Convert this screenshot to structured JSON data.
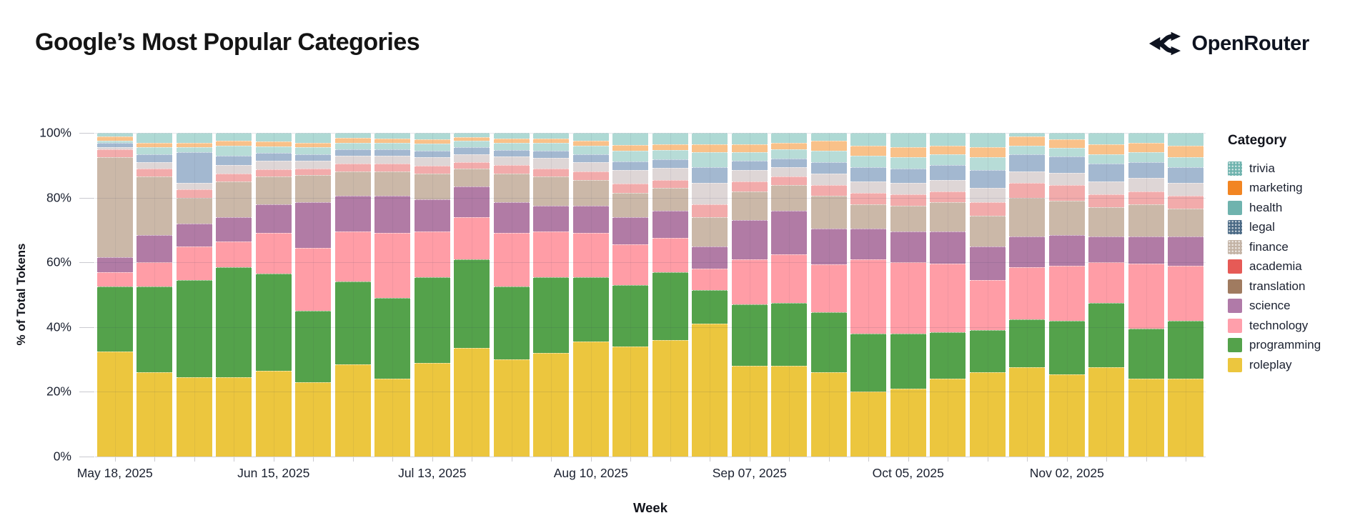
{
  "header": {
    "title": "Google’s Most Popular Categories",
    "brand": {
      "name": "OpenRouter",
      "icon": "route-split-icon"
    }
  },
  "chart_data": {
    "type": "bar",
    "subtype": "stacked-100-percent",
    "title": "Google’s Most Popular Categories",
    "xlabel": "Week",
    "ylabel": "% of Total Tokens",
    "ylim": [
      0,
      100
    ],
    "grid": true,
    "ytick_labels": [
      "0%",
      "20%",
      "40%",
      "60%",
      "80%",
      "100%"
    ],
    "x": [
      "May 18, 2025",
      "May 25, 2025",
      "Jun 01, 2025",
      "Jun 08, 2025",
      "Jun 15, 2025",
      "Jun 22, 2025",
      "Jun 29, 2025",
      "Jul 06, 2025",
      "Jul 13, 2025",
      "Jul 20, 2025",
      "Jul 27, 2025",
      "Aug 03, 2025",
      "Aug 10, 2025",
      "Aug 17, 2025",
      "Aug 24, 2025",
      "Aug 31, 2025",
      "Sep 07, 2025",
      "Sep 14, 2025",
      "Sep 21, 2025",
      "Sep 28, 2025",
      "Oct 05, 2025",
      "Oct 12, 2025",
      "Oct 19, 2025",
      "Oct 26, 2025",
      "Nov 02, 2025",
      "Nov 09, 2025",
      "Nov 16, 2025",
      "Nov 23, 2025"
    ],
    "x_labeled_indices": [
      0,
      4,
      8,
      12,
      16,
      20,
      24
    ],
    "x_labels_shown": [
      "May 18, 2025",
      "Jun 15, 2025",
      "Jul 13, 2025",
      "Aug 10, 2025",
      "Sep 07, 2025",
      "Oct 05, 2025",
      "Nov 02, 2025"
    ],
    "stack_order_bottom_to_top": [
      "roleplay",
      "programming",
      "technology",
      "science",
      "translation",
      "academia",
      "finance",
      "legal",
      "health",
      "marketing",
      "trivia"
    ],
    "series": [
      {
        "name": "roleplay",
        "bar_color": "#ecc63e",
        "legend_color": "#ecc63e",
        "textured": false,
        "values": [
          32.5,
          26,
          24.5,
          24.5,
          26.5,
          23,
          28.5,
          24,
          29,
          33.5,
          30,
          32,
          35.5,
          34,
          36,
          41,
          28,
          28,
          26,
          20,
          21,
          24,
          26,
          27.5,
          25.5,
          27.5,
          24,
          24
        ]
      },
      {
        "name": "programming",
        "bar_color": "#54a24b",
        "legend_color": "#54a24b",
        "textured": false,
        "values": [
          20,
          26.5,
          30,
          34,
          30,
          22,
          25.5,
          25,
          26.5,
          27.5,
          22.5,
          23.5,
          20,
          19,
          21,
          10.5,
          19,
          19.5,
          18.5,
          18,
          17,
          14.5,
          13,
          15,
          16.5,
          20,
          15.5,
          18
        ]
      },
      {
        "name": "technology",
        "bar_color": "#ff9da6",
        "legend_color": "#ff9fab",
        "textured": false,
        "values": [
          4.5,
          7.5,
          10.5,
          8,
          12.5,
          19.5,
          15.5,
          20,
          14,
          13,
          16.5,
          14,
          13.5,
          12.5,
          10.5,
          6.5,
          14,
          15,
          15,
          23,
          22,
          21,
          15.5,
          16,
          17,
          12.5,
          20,
          17
        ]
      },
      {
        "name": "science",
        "bar_color": "#b17ba5",
        "legend_color": "#b07aa8",
        "textured": false,
        "values": [
          4.5,
          8.5,
          7,
          7.5,
          9,
          14,
          11,
          11.5,
          10,
          9.5,
          9.5,
          8,
          8.5,
          8.5,
          8.5,
          7,
          12,
          13.5,
          11,
          9.5,
          9.5,
          10,
          10.5,
          9.5,
          9.5,
          8,
          8.5,
          9
        ]
      },
      {
        "name": "translation",
        "bar_color": "#cbb8a8",
        "legend_color": "#a07b60",
        "textured": false,
        "values": [
          31,
          18,
          8,
          11,
          8.5,
          8.5,
          7.5,
          7.5,
          8,
          5.5,
          9,
          9,
          8,
          7.5,
          7,
          9,
          9,
          8,
          10,
          7.5,
          8,
          9,
          9.5,
          12,
          10.5,
          9,
          10,
          8.5
        ]
      },
      {
        "name": "academia",
        "bar_color": "#f2abab",
        "legend_color": "#e65a56",
        "textured": false,
        "values": [
          2.5,
          2.5,
          2.5,
          2.5,
          2.2,
          2,
          2.5,
          2.5,
          2.3,
          2,
          2.5,
          2.5,
          2.5,
          2.8,
          2.5,
          4,
          3,
          2.5,
          3.5,
          3.5,
          3.5,
          3.5,
          4,
          4.5,
          5,
          4,
          4,
          4
        ]
      },
      {
        "name": "finance",
        "bar_color": "#ded6d6",
        "legend_color": "#c3b3a5",
        "textured": true,
        "values": [
          0.5,
          2,
          2,
          2.5,
          2.8,
          2.5,
          2.5,
          2.5,
          2.7,
          2.5,
          2.8,
          3.2,
          3,
          4.2,
          3.8,
          6.5,
          3.5,
          3,
          3.5,
          3.5,
          3.5,
          3.5,
          4.5,
          3.5,
          3.7,
          4,
          4,
          4
        ]
      },
      {
        "name": "legal",
        "bar_color": "#a3b8d0",
        "legend_color": "#4a6985",
        "textured": true,
        "values": [
          1.5,
          2.5,
          9.5,
          3,
          2.3,
          2,
          2,
          2,
          2,
          2,
          2,
          2.3,
          2.3,
          2.7,
          2.5,
          5,
          3,
          2.5,
          3.5,
          4.5,
          4.5,
          4.5,
          5.5,
          5.5,
          5,
          5.5,
          5,
          5
        ]
      },
      {
        "name": "health",
        "bar_color": "#b7dcd7",
        "legend_color": "#6fb3ae",
        "textured": false,
        "values": [
          0.5,
          2,
          1.5,
          3,
          2,
          2.2,
          2,
          2,
          2.2,
          2,
          2.2,
          2.5,
          2.7,
          3.3,
          3,
          4.5,
          2.5,
          3,
          3.5,
          3.5,
          3.5,
          3.5,
          4,
          2.5,
          2.6,
          3,
          3,
          3
        ]
      },
      {
        "name": "marketing",
        "bar_color": "#f9c189",
        "legend_color": "#f28522",
        "textured": false,
        "values": [
          1.5,
          1.5,
          1.5,
          1.5,
          1.5,
          1.3,
          1.5,
          1.3,
          1.3,
          1.2,
          1.3,
          1.3,
          1.5,
          1.8,
          1.7,
          2.5,
          2.5,
          2,
          3,
          3,
          3,
          2.5,
          3,
          3,
          2.7,
          3,
          3,
          3.5
        ]
      },
      {
        "name": "trivia",
        "bar_color": "#aed9d4",
        "legend_color": "#6fb3ae",
        "textured": true,
        "values": [
          1,
          3,
          3,
          2.5,
          2.7,
          3,
          1.5,
          1.7,
          2,
          1.3,
          1.7,
          1.7,
          2.5,
          3.7,
          3.5,
          3.5,
          3.5,
          3,
          2.5,
          4,
          4.5,
          4,
          4.5,
          1,
          2,
          3.5,
          3,
          4
        ]
      }
    ],
    "legend": {
      "title": "Category",
      "position": "right",
      "order_top_to_bottom": [
        "trivia",
        "marketing",
        "health",
        "legal",
        "finance",
        "academia",
        "translation",
        "science",
        "technology",
        "programming",
        "roleplay"
      ]
    }
  }
}
